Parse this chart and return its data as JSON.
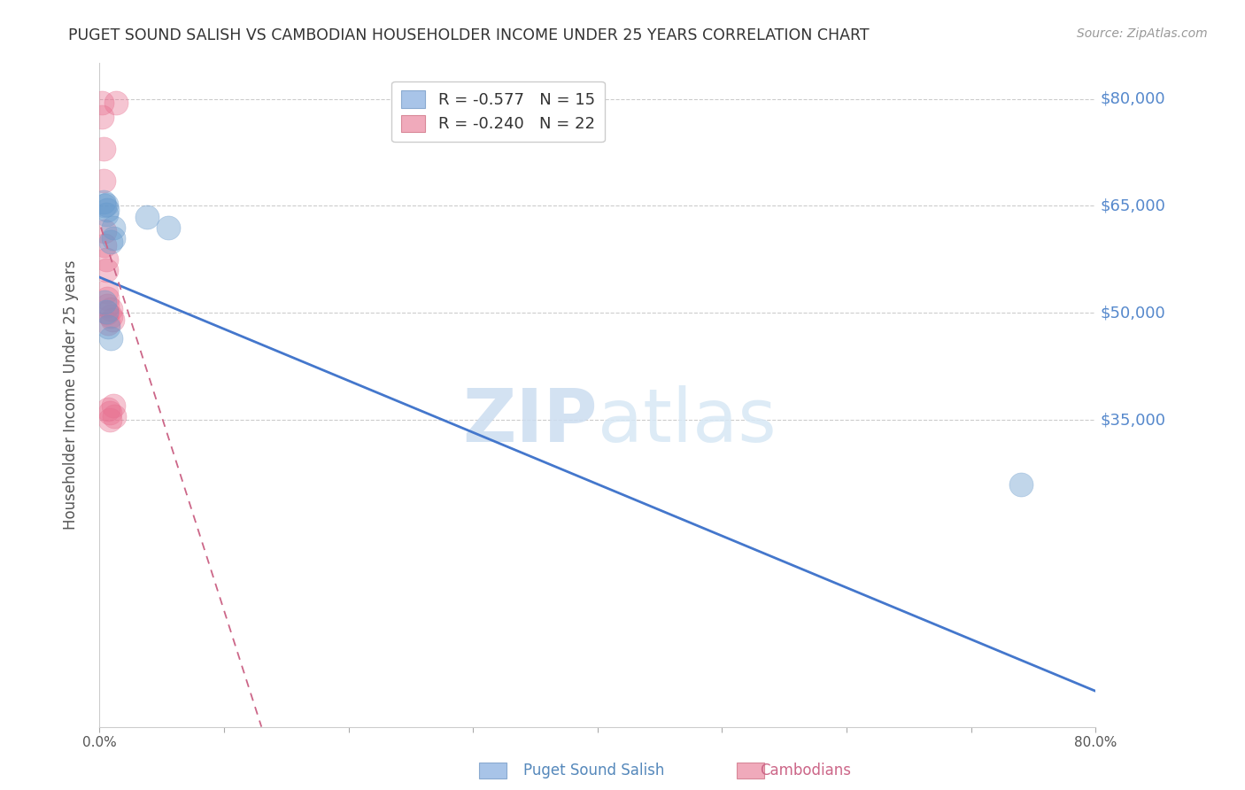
{
  "title": "PUGET SOUND SALISH VS CAMBODIAN HOUSEHOLDER INCOME UNDER 25 YEARS CORRELATION CHART",
  "source": "Source: ZipAtlas.com",
  "ylabel": "Householder Income Under 25 years",
  "watermark": "ZIPatlas",
  "xlim": [
    0.0,
    0.8
  ],
  "ylim": [
    -8000,
    85000
  ],
  "yticks": [
    35000,
    50000,
    65000,
    80000
  ],
  "ytick_labels": [
    "$35,000",
    "$50,000",
    "$65,000",
    "$80,000"
  ],
  "xticks": [
    0.0,
    0.1,
    0.2,
    0.3,
    0.4,
    0.5,
    0.6,
    0.7,
    0.8
  ],
  "xtick_labels": [
    "0.0%",
    "",
    "",
    "",
    "",
    "",
    "",
    "",
    "80.0%"
  ],
  "blue_scatter_x": [
    0.003,
    0.004,
    0.005,
    0.005,
    0.006,
    0.004,
    0.005,
    0.007,
    0.009,
    0.011,
    0.011,
    0.009,
    0.038,
    0.055,
    0.74
  ],
  "blue_scatter_y": [
    65500,
    65000,
    65200,
    63800,
    64500,
    51500,
    50200,
    48000,
    46500,
    62000,
    60500,
    60000,
    63500,
    62000,
    26000
  ],
  "pink_scatter_x": [
    0.002,
    0.002,
    0.003,
    0.003,
    0.004,
    0.004,
    0.005,
    0.005,
    0.005,
    0.006,
    0.006,
    0.006,
    0.007,
    0.007,
    0.008,
    0.008,
    0.009,
    0.009,
    0.01,
    0.011,
    0.012,
    0.013
  ],
  "pink_scatter_y": [
    79500,
    77500,
    73000,
    68500,
    61500,
    59500,
    57500,
    56000,
    53000,
    52000,
    51000,
    50000,
    48500,
    36500,
    36000,
    35000,
    50500,
    49500,
    49000,
    37000,
    35500,
    79500
  ],
  "blue_line_x": [
    0.0,
    0.8
  ],
  "blue_line_y": [
    55000,
    -3000
  ],
  "pink_line_x": [
    0.001,
    0.13
  ],
  "pink_line_y": [
    62000,
    -8000
  ],
  "blue_color": "#6699cc",
  "pink_color": "#e87090",
  "blue_line_color": "#4477cc",
  "pink_line_color": "#cc6688",
  "background_color": "#ffffff",
  "grid_color": "#cccccc",
  "title_color": "#333333",
  "right_label_color": "#5588cc",
  "source_color": "#999999"
}
